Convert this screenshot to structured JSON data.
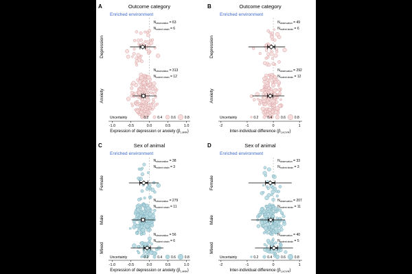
{
  "colors": {
    "anxiety_depression_fill": "#f6dcdc",
    "anxiety_depression_stroke": "#d9a0a0",
    "sex_fill": "#b5d8e0",
    "sex_stroke": "#7fb0bd",
    "subtitle": "#3a67c9"
  },
  "chart_data": [
    {
      "panel": "A",
      "type": "scatter",
      "title": "Outcome category",
      "subtitle": "Enriched environment",
      "xlabel": "Expression of depression or anxiety (β",
      "xlabel_sub": "LnRR",
      "xlabel_close": ")",
      "xlim": [
        -1.1,
        1.1
      ],
      "xticks": [
        -1.0,
        -0.5,
        0.0,
        0.5,
        1.0
      ],
      "xtick_labels": [
        "-1.0",
        "-0.5",
        "0.0",
        "0.5",
        "1.0"
      ],
      "legend": {
        "title": "Uncertainty",
        "levels": [
          "0.2",
          "0.4",
          "0.6",
          "0.8"
        ],
        "placement": "bottom"
      },
      "groups": [
        {
          "name": "Depression",
          "n_observation": "63",
          "n_rodent_strain": "6",
          "estimate": -0.18,
          "ci": [
            -0.25,
            -0.11
          ],
          "pi": [
            -0.52,
            0.17
          ],
          "spread": 0.42,
          "n_points": 40,
          "eff_n": 1.0
        },
        {
          "name": "Anxiety",
          "n_observation": "313",
          "n_rodent_strain": "12",
          "estimate": -0.16,
          "ci": [
            -0.21,
            -0.11
          ],
          "pi": [
            -0.45,
            0.2
          ],
          "spread": 0.4,
          "n_points": 170,
          "eff_n": 2.4
        }
      ]
    },
    {
      "panel": "B",
      "type": "scatter",
      "title": "Outcome category",
      "subtitle": "Enriched environment",
      "xlabel": "Inter-individual difference (β",
      "xlabel_sub": "LnCVR",
      "xlabel_close": ")",
      "xlim": [
        -2.1,
        1.1
      ],
      "xticks": [
        -2,
        -1,
        0,
        1
      ],
      "xtick_labels": [
        "-2",
        "-1",
        "0",
        "1"
      ],
      "legend": {
        "title": "Uncertainty",
        "levels": [
          "0.2",
          "0.4",
          "0.6",
          "0.8"
        ],
        "placement": "bottom"
      },
      "groups": [
        {
          "name": "Depression",
          "n_observation": "49",
          "n_rodent_strain": "6",
          "estimate": -0.08,
          "ci": [
            -0.22,
            0.06
          ],
          "pi": [
            -0.95,
            0.45
          ],
          "spread": 0.55,
          "n_points": 34,
          "eff_n": 1.0
        },
        {
          "name": "Anxiety",
          "n_observation": "292",
          "n_rodent_strain": "12",
          "estimate": -0.12,
          "ci": [
            -0.22,
            -0.02
          ],
          "pi": [
            -0.8,
            0.42
          ],
          "spread": 0.55,
          "n_points": 160,
          "eff_n": 2.4
        }
      ]
    },
    {
      "panel": "C",
      "type": "scatter",
      "title": "Sex of animal",
      "subtitle": "Enriched environment",
      "xlabel": "Expression of depression or anxiety (β",
      "xlabel_sub": "LnRR",
      "xlabel_close": ")",
      "xlim": [
        -1.1,
        1.1
      ],
      "xticks": [
        -1.0,
        -0.5,
        0.0,
        0.5,
        1.0
      ],
      "xtick_labels": [
        "-1.0",
        "-0.5",
        "0.0",
        "0.5",
        "1.0"
      ],
      "legend": {
        "title": "Uncertainty",
        "levels": [
          "0.2",
          "0.4",
          "0.6",
          "0.8"
        ],
        "placement": "bottom"
      },
      "groups": [
        {
          "name": "Female",
          "n_observation": "38",
          "n_rodent_strain": "3",
          "estimate": -0.15,
          "ci": [
            -0.26,
            -0.04
          ],
          "pi": [
            -0.55,
            0.25
          ],
          "spread": 0.45,
          "n_points": 26,
          "eff_n": 1.0
        },
        {
          "name": "Male",
          "n_observation": "279",
          "n_rodent_strain": "11",
          "estimate": -0.17,
          "ci": [
            -0.22,
            -0.12
          ],
          "pi": [
            -0.48,
            0.15
          ],
          "spread": 0.4,
          "n_points": 150,
          "eff_n": 2.4
        },
        {
          "name": "Mixed",
          "n_observation": "56",
          "n_rodent_strain": "6",
          "estimate": -0.06,
          "ci": [
            -0.15,
            0.03
          ],
          "pi": [
            -0.5,
            0.38
          ],
          "spread": 0.42,
          "n_points": 34,
          "eff_n": 1.0
        }
      ]
    },
    {
      "panel": "D",
      "type": "scatter",
      "title": "Sex of animal",
      "subtitle": "Enriched environment",
      "xlabel": "Inter-individual difference (β",
      "xlabel_sub": "LnCVR",
      "xlabel_close": ")",
      "xlim": [
        -2.1,
        1.1
      ],
      "xticks": [
        -2,
        -1,
        0,
        1
      ],
      "xtick_labels": [
        "-2",
        "-1",
        "0",
        "1"
      ],
      "legend": {
        "title": "Uncertainty",
        "levels": [
          "0.2",
          "0.4",
          "0.6",
          "0.8"
        ],
        "placement": "bottom"
      },
      "groups": [
        {
          "name": "Female",
          "n_observation": "33",
          "n_rodent_strain": "3",
          "estimate": -0.12,
          "ci": [
            -0.3,
            0.06
          ],
          "pi": [
            -0.95,
            0.7
          ],
          "spread": 0.55,
          "n_points": 24,
          "eff_n": 1.0
        },
        {
          "name": "Male",
          "n_observation": "207",
          "n_rodent_strain": "11",
          "estimate": -0.1,
          "ci": [
            -0.2,
            0.0
          ],
          "pi": [
            -0.85,
            0.45
          ],
          "spread": 0.55,
          "n_points": 140,
          "eff_n": 2.4
        },
        {
          "name": "Mixed",
          "n_observation": "40",
          "n_rodent_strain": "5",
          "estimate": 0.02,
          "ci": [
            -0.12,
            0.16
          ],
          "pi": [
            -0.7,
            0.75
          ],
          "spread": 0.55,
          "n_points": 28,
          "eff_n": 1.0
        }
      ]
    }
  ]
}
